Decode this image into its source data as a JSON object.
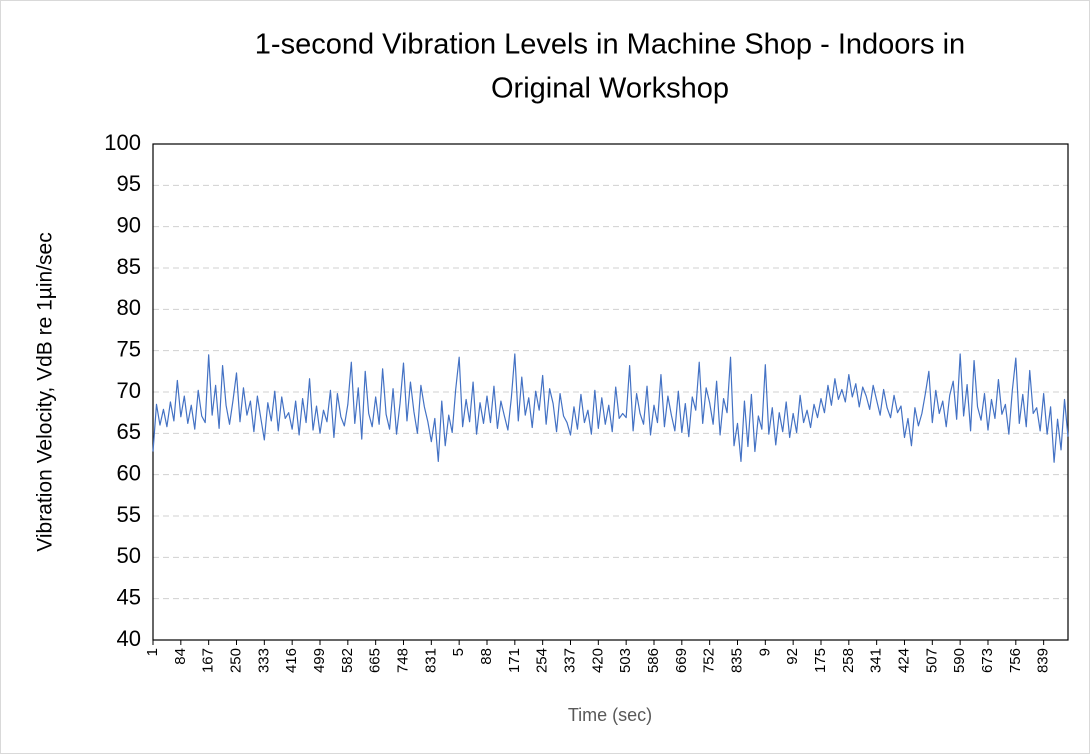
{
  "chart_data": {
    "type": "line",
    "title": [
      "1-second Vibration Levels in Machine Shop - Indoors in",
      "Original Workshop"
    ],
    "xlabel": "Time (sec)",
    "ylabel": "Vibration Velocity, VdB re 1µin/sec",
    "ylim": [
      40,
      100
    ],
    "yticks": [
      40,
      45,
      50,
      55,
      60,
      65,
      70,
      75,
      80,
      85,
      90,
      95,
      100
    ],
    "grid": true,
    "categories": [
      "1",
      null,
      null,
      null,
      null,
      null,
      null,
      null,
      "84",
      null,
      null,
      null,
      null,
      null,
      null,
      null,
      "167",
      null,
      null,
      null,
      null,
      null,
      null,
      null,
      "250",
      null,
      null,
      null,
      null,
      null,
      null,
      null,
      "333",
      null,
      null,
      null,
      null,
      null,
      null,
      null,
      "416",
      null,
      null,
      null,
      null,
      null,
      null,
      null,
      "499",
      null,
      null,
      null,
      null,
      null,
      null,
      null,
      "582",
      null,
      null,
      null,
      null,
      null,
      null,
      null,
      "665",
      null,
      null,
      null,
      null,
      null,
      null,
      null,
      "748",
      null,
      null,
      null,
      null,
      null,
      null,
      null,
      "831",
      null,
      null,
      null,
      null,
      null,
      null,
      null,
      "5",
      null,
      null,
      null,
      null,
      null,
      null,
      null,
      "88",
      null,
      null,
      null,
      null,
      null,
      null,
      null,
      "171",
      null,
      null,
      null,
      null,
      null,
      null,
      null,
      "254",
      null,
      null,
      null,
      null,
      null,
      null,
      null,
      "337",
      null,
      null,
      null,
      null,
      null,
      null,
      null,
      "420",
      null,
      null,
      null,
      null,
      null,
      null,
      null,
      "503",
      null,
      null,
      null,
      null,
      null,
      null,
      null,
      "586",
      null,
      null,
      null,
      null,
      null,
      null,
      null,
      "669",
      null,
      null,
      null,
      null,
      null,
      null,
      null,
      "752",
      null,
      null,
      null,
      null,
      null,
      null,
      null,
      "835",
      null,
      null,
      null,
      null,
      null,
      null,
      null,
      "9",
      null,
      null,
      null,
      null,
      null,
      null,
      null,
      "92",
      null,
      null,
      null,
      null,
      null,
      null,
      null,
      "175",
      null,
      null,
      null,
      null,
      null,
      null,
      null,
      "258",
      null,
      null,
      null,
      null,
      null,
      null,
      null,
      "341",
      null,
      null,
      null,
      null,
      null,
      null,
      null,
      "424",
      null,
      null,
      null,
      null,
      null,
      null,
      null,
      "507",
      null,
      null,
      null,
      null,
      null,
      null,
      null,
      "590",
      null,
      null,
      null,
      null,
      null,
      null,
      null,
      "673",
      null,
      null,
      null,
      null,
      null,
      null,
      null,
      "756",
      null,
      null,
      null,
      null,
      null,
      null,
      null,
      "839",
      null,
      null,
      null,
      null,
      null,
      null,
      null
    ],
    "series": [
      {
        "color": "#4472c4",
        "values": [
          62.8,
          68.5,
          66,
          67.9,
          65.8,
          68.8,
          66.5,
          71.4,
          67,
          69.5,
          66.2,
          68.4,
          65.5,
          70.2,
          67.1,
          66.3,
          74.5,
          67.2,
          70.8,
          65.6,
          73.2,
          68.4,
          66.1,
          69,
          72.3,
          66.4,
          70.5,
          67.2,
          68.9,
          65.2,
          69.5,
          66.8,
          64.2,
          68.7,
          66.5,
          70.1,
          65.3,
          69.4,
          66.8,
          67.5,
          65.5,
          68.9,
          64.8,
          69.2,
          66.3,
          71.6,
          65.4,
          68.3,
          65,
          67.8,
          66.4,
          70.2,
          64.5,
          69.8,
          67,
          65.9,
          68.5,
          73.6,
          66.2,
          70.5,
          64.3,
          72.5,
          67.4,
          65.8,
          69.4,
          66.1,
          72.8,
          67.3,
          65.5,
          70.4,
          64.9,
          68.6,
          73.5,
          66.5,
          71.2,
          67.6,
          65,
          70.8,
          68.2,
          66.4,
          64,
          66.8,
          61.6,
          68.9,
          63.5,
          67.2,
          65.1,
          70.3,
          74.2,
          65.8,
          69.1,
          66.4,
          71.2,
          64.9,
          68.7,
          66.2,
          69.5,
          66.3,
          70.7,
          65.6,
          68.9,
          67.1,
          65.4,
          69.3,
          74.6,
          66.5,
          71.8,
          67.2,
          69.3,
          65.7,
          70.1,
          67.8,
          72,
          66.1,
          70.4,
          68.6,
          65.2,
          69.8,
          67.1,
          66.3,
          64.8,
          68.2,
          65.5,
          69.7,
          66.3,
          67.8,
          64.9,
          70.2,
          65.6,
          69.3,
          66.1,
          68.4,
          65.2,
          70.6,
          66.8,
          67.4,
          66.9,
          73.2,
          65.3,
          69.8,
          67.4,
          66.1,
          70.7,
          64.8,
          68.4,
          66.3,
          72.1,
          65.8,
          69.5,
          67.2,
          65.3,
          70.1,
          65.1,
          68.6,
          64.6,
          69.4,
          67.8,
          73.6,
          66.2,
          70.5,
          68.7,
          66.1,
          71.3,
          64.8,
          69.2,
          67.5,
          74.2,
          63.5,
          66.2,
          61.6,
          68.9,
          63.4,
          69.7,
          62.8,
          67.1,
          65.5,
          73.3,
          64.9,
          68.1,
          63.6,
          67.5,
          65.2,
          68.8,
          64.5,
          67.4,
          65.1,
          69.6,
          66.3,
          67.8,
          65.7,
          68.5,
          66.9,
          69.2,
          67.5,
          70.8,
          68.4,
          71.6,
          69.1,
          70.3,
          68.8,
          72.1,
          69.4,
          71,
          68.2,
          70.6,
          69.5,
          67.9,
          70.8,
          69,
          67.2,
          70.3,
          68.1,
          66.9,
          69.6,
          67.5,
          68.3,
          64.5,
          66.8,
          63.5,
          68.1,
          65.9,
          67.4,
          69.8,
          72.5,
          66.3,
          70.2,
          67.4,
          68.9,
          65.8,
          69.6,
          71.3,
          66.7,
          74.6,
          67.1,
          70.9,
          65.3,
          73.8,
          68.2,
          66.6,
          69.8,
          65.4,
          69.1,
          66.8,
          71.5,
          67.3,
          68.5,
          64.9,
          70.2,
          74.1,
          66.2,
          69.7,
          65.8,
          72.6,
          67.4,
          68.1,
          65.3,
          69.8,
          64.9,
          68.2,
          61.5,
          66.7,
          63,
          69.1,
          64.6
        ]
      }
    ]
  }
}
